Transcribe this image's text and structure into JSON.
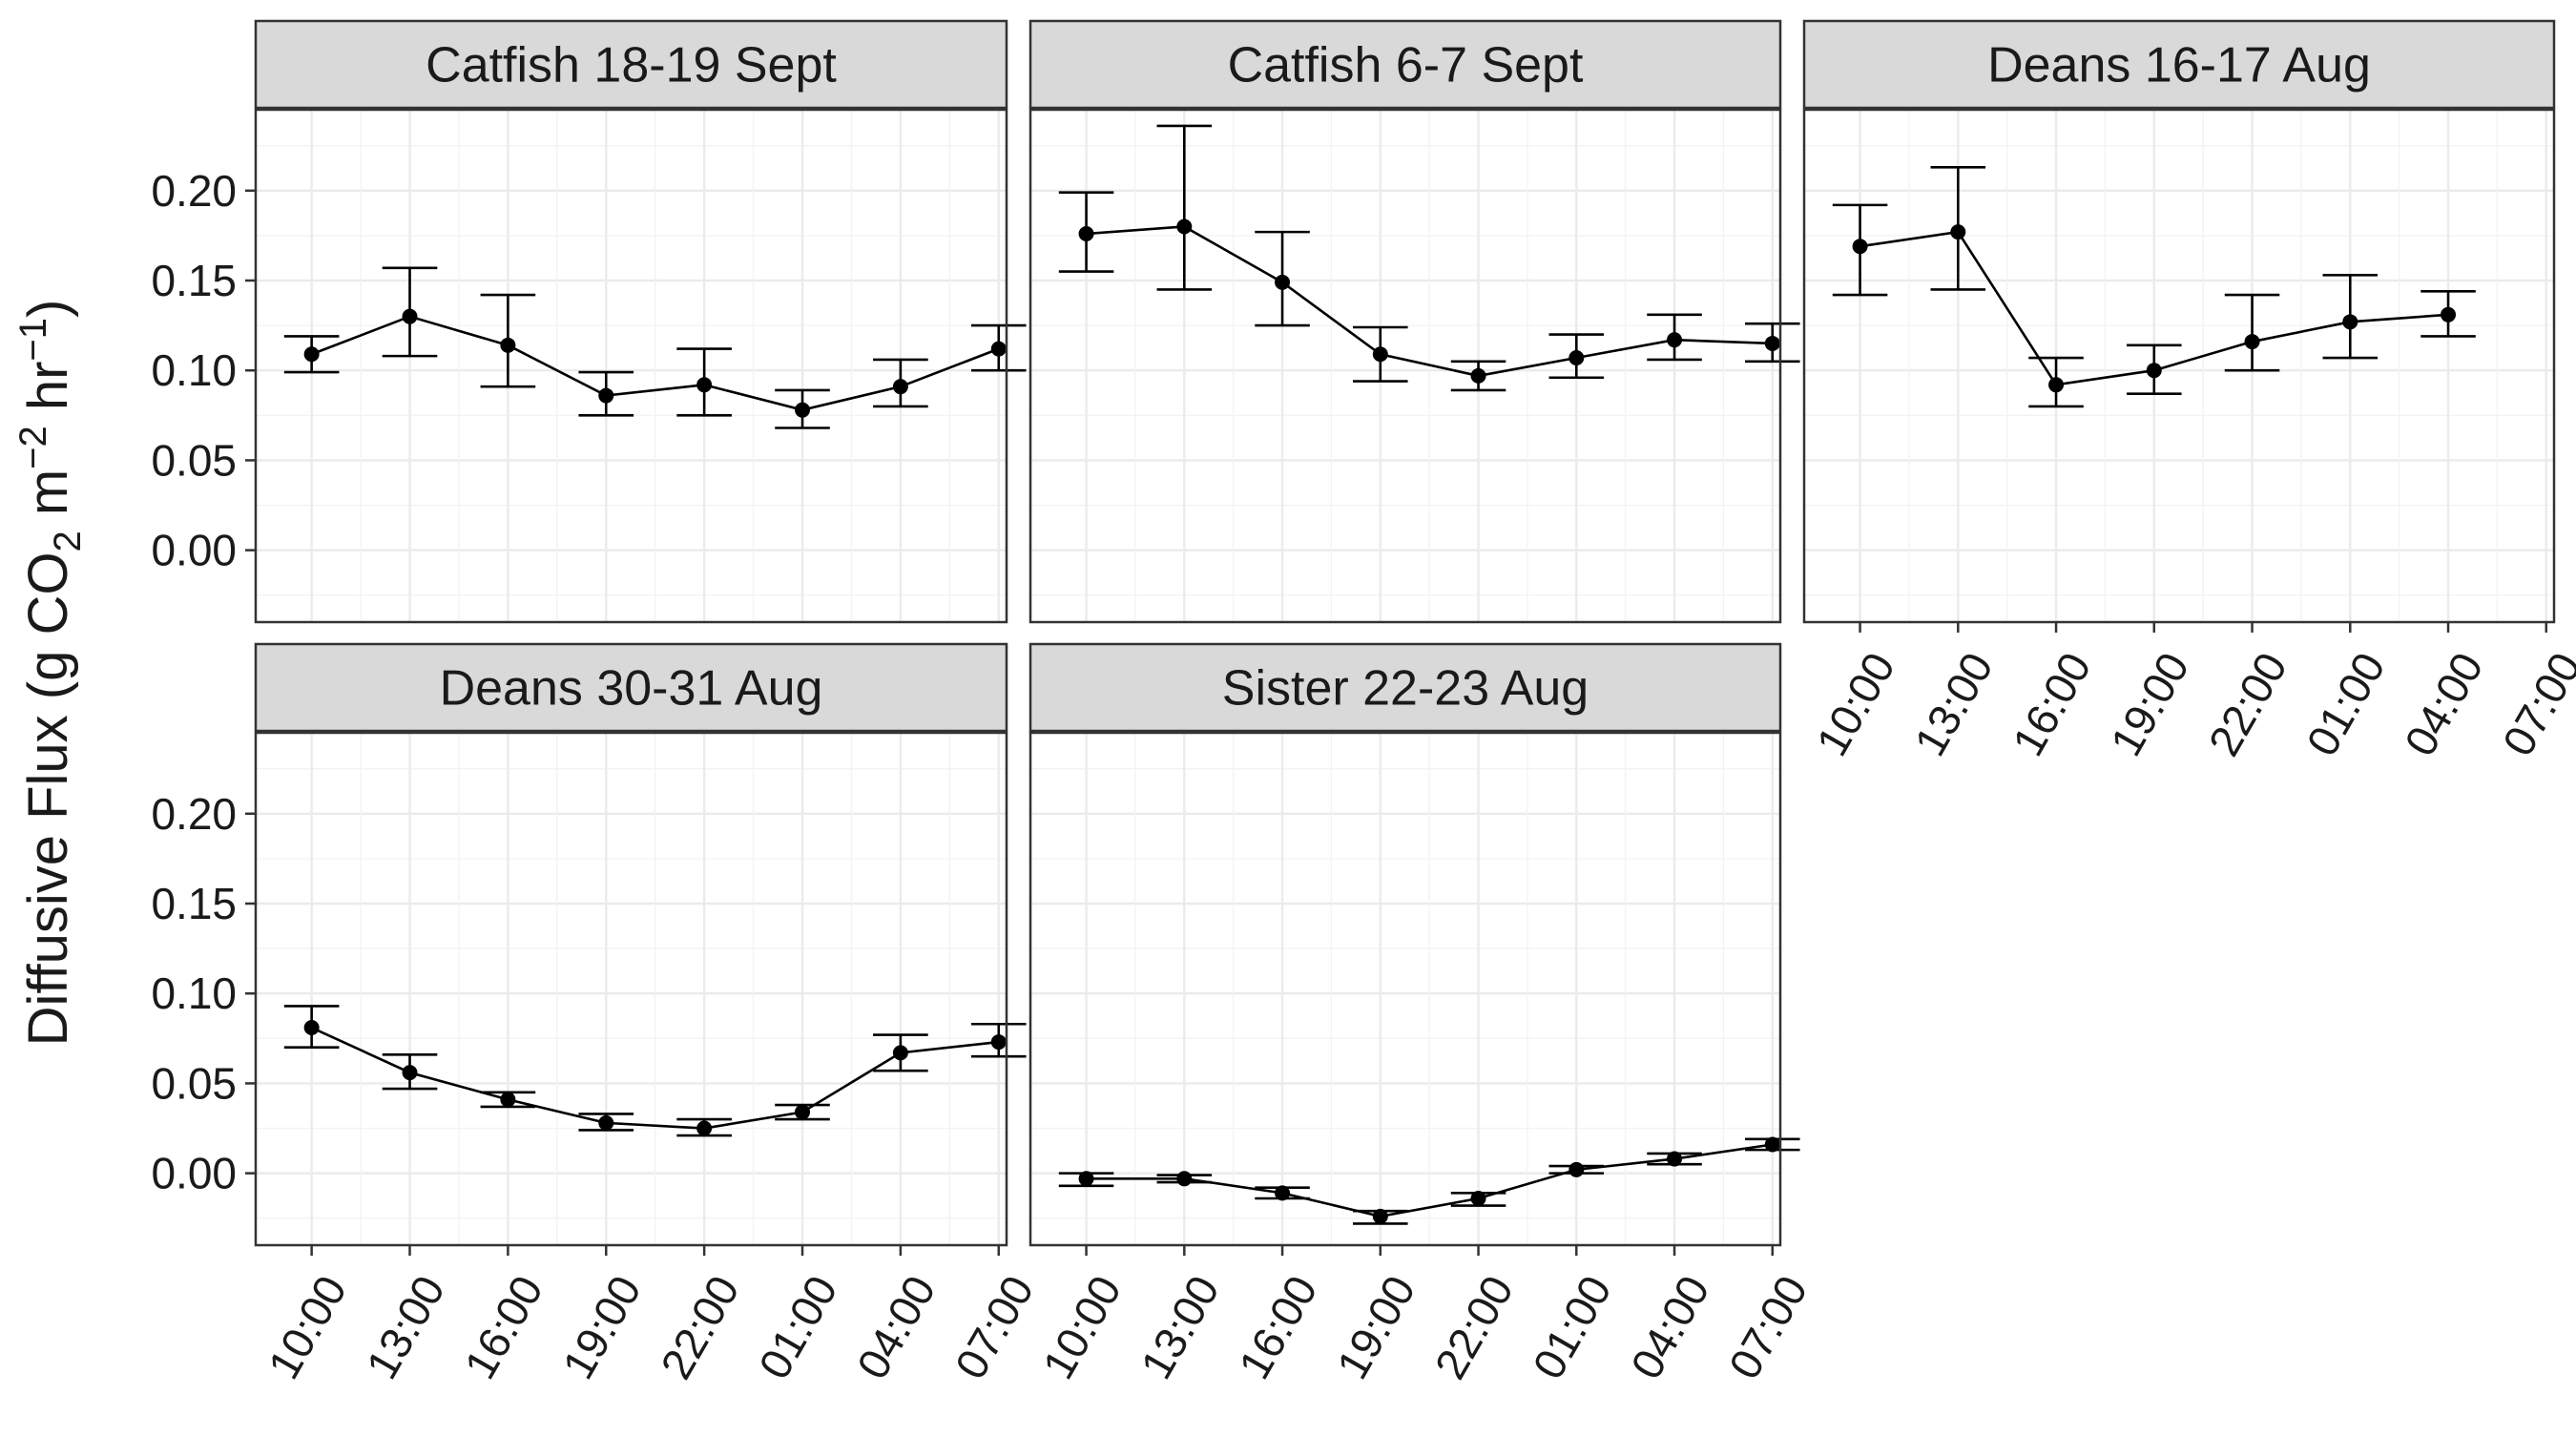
{
  "chart_data": {
    "type": "line",
    "ylabel": {
      "prefix": "Diffusive Flux (g CO",
      "sub": "2",
      "mid1": " m",
      "sup1": "−2",
      "mid2": " hr",
      "sup2": "−1",
      "suffix": ")"
    },
    "xlabel": "",
    "ylim": [
      -0.04,
      0.245
    ],
    "yticks": [
      0.0,
      0.05,
      0.1,
      0.15,
      0.2
    ],
    "ytick_labels": [
      "0.00",
      "0.05",
      "0.10",
      "0.15",
      "0.20"
    ],
    "x_categories": [
      "10:00",
      "13:00",
      "16:00",
      "19:00",
      "22:00",
      "01:00",
      "04:00",
      "07:00"
    ],
    "grid": true,
    "legend": "none",
    "panels": [
      {
        "title": "Catfish 18-19 Sept",
        "values": [
          0.109,
          0.13,
          0.114,
          0.086,
          0.092,
          0.078,
          0.091,
          0.112
        ],
        "lower": [
          0.099,
          0.108,
          0.091,
          0.075,
          0.075,
          0.068,
          0.08,
          0.1
        ],
        "upper": [
          0.119,
          0.157,
          0.142,
          0.099,
          0.112,
          0.089,
          0.106,
          0.125
        ]
      },
      {
        "title": "Catfish 6-7 Sept",
        "values": [
          0.176,
          0.18,
          0.149,
          0.109,
          0.097,
          0.107,
          0.117,
          0.115
        ],
        "lower": [
          0.155,
          0.145,
          0.125,
          0.094,
          0.089,
          0.096,
          0.106,
          0.105
        ],
        "upper": [
          0.199,
          0.236,
          0.177,
          0.124,
          0.105,
          0.12,
          0.131,
          0.126
        ]
      },
      {
        "title": "Deans 16-17 Aug",
        "values": [
          0.169,
          0.177,
          0.092,
          0.1,
          0.116,
          0.127,
          0.131
        ],
        "lower": [
          0.142,
          0.145,
          0.08,
          0.087,
          0.1,
          0.107,
          0.119
        ],
        "upper": [
          0.192,
          0.213,
          0.107,
          0.114,
          0.142,
          0.153,
          0.144
        ]
      },
      {
        "title": "Deans 30-31 Aug",
        "values": [
          0.081,
          0.056,
          0.041,
          0.028,
          0.025,
          0.034,
          0.067,
          0.073
        ],
        "lower": [
          0.07,
          0.047,
          0.037,
          0.024,
          0.021,
          0.03,
          0.057,
          0.065
        ],
        "upper": [
          0.093,
          0.066,
          0.045,
          0.033,
          0.03,
          0.038,
          0.077,
          0.083
        ]
      },
      {
        "title": "Sister 22-23 Aug",
        "values": [
          -0.003,
          -0.003,
          -0.011,
          -0.024,
          -0.014,
          0.002,
          0.008,
          0.016
        ],
        "lower": [
          -0.007,
          -0.005,
          -0.014,
          -0.028,
          -0.018,
          0.0,
          0.005,
          0.013
        ],
        "upper": [
          0.0,
          -0.001,
          -0.008,
          -0.021,
          -0.011,
          0.004,
          0.011,
          0.019
        ]
      }
    ]
  }
}
